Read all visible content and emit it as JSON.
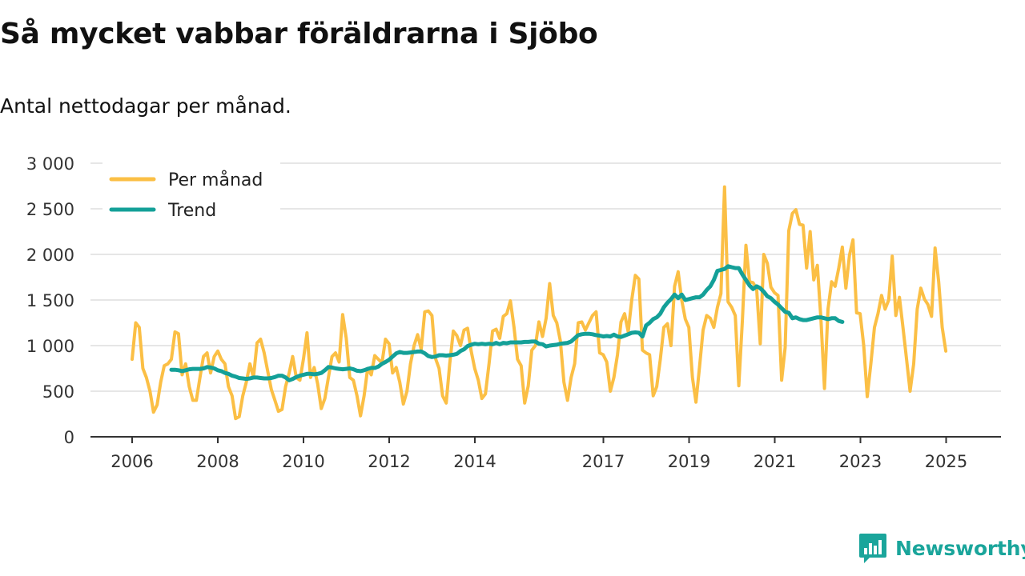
{
  "title": "Så mycket vabbar föräldrarna i Sjöbo",
  "subtitle": "Antal nettodagar per månad.",
  "brand": "Newsworthy",
  "colors": {
    "per_month": "#fbbf45",
    "trend": "#14a098",
    "grid": "#dddddd",
    "axis": "#333333"
  },
  "chart_data": {
    "type": "line",
    "ylim": [
      0,
      3000
    ],
    "y_ticks": [
      0,
      500,
      1000,
      1500,
      2000,
      2500,
      3000
    ],
    "y_tick_labels": [
      "0",
      "500",
      "1 000",
      "1 500",
      "2 000",
      "2 500",
      "3 000"
    ],
    "x_range": [
      2006.0,
      2025.5
    ],
    "x_ticks": [
      2006,
      2008,
      2010,
      2012,
      2014,
      2017,
      2019,
      2021,
      2023,
      2025
    ],
    "x_tick_labels": [
      "2006",
      "2008",
      "2010",
      "2012",
      "2014",
      "2017",
      "2019",
      "2021",
      "2023",
      "2025"
    ],
    "legend": [
      {
        "label": "Per månad",
        "color": "#fbbf45"
      },
      {
        "label": "Trend",
        "color": "#14a098"
      }
    ],
    "series": [
      {
        "name": "Per månad",
        "color": "#fbbf45",
        "x_start": 2006.0,
        "step": 0.0833,
        "values": [
          850,
          1250,
          1200,
          750,
          650,
          500,
          270,
          350,
          600,
          780,
          800,
          850,
          1150,
          1130,
          680,
          800,
          550,
          400,
          400,
          650,
          880,
          920,
          700,
          880,
          940,
          850,
          800,
          550,
          450,
          200,
          220,
          450,
          600,
          800,
          650,
          1030,
          1070,
          920,
          720,
          520,
          400,
          280,
          300,
          550,
          700,
          880,
          650,
          620,
          850,
          1140,
          650,
          760,
          580,
          310,
          420,
          650,
          880,
          920,
          820,
          1340,
          1080,
          650,
          620,
          450,
          230,
          450,
          750,
          680,
          890,
          850,
          810,
          1070,
          1020,
          700,
          760,
          600,
          360,
          500,
          800,
          1000,
          1120,
          960,
          1370,
          1380,
          1330,
          860,
          750,
          450,
          370,
          800,
          1160,
          1110,
          1000,
          1170,
          1190,
          940,
          750,
          620,
          420,
          470,
          800,
          1160,
          1180,
          1080,
          1320,
          1350,
          1490,
          1200,
          850,
          780,
          370,
          560,
          950,
          1000,
          1260,
          1100,
          1300,
          1680,
          1330,
          1250,
          1050,
          600,
          400,
          650,
          800,
          1250,
          1260,
          1170,
          1250,
          1330,
          1370,
          920,
          900,
          820,
          500,
          650,
          900,
          1260,
          1350,
          1150,
          1500,
          1770,
          1730,
          950,
          920,
          900,
          450,
          550,
          850,
          1200,
          1240,
          1000,
          1650,
          1810,
          1500,
          1290,
          1200,
          650,
          380,
          770,
          1170,
          1330,
          1300,
          1200,
          1420,
          1570,
          2740,
          1480,
          1420,
          1330,
          560,
          1280,
          2100,
          1700,
          1690,
          1620,
          1020,
          2000,
          1900,
          1640,
          1580,
          1550,
          620,
          980,
          2260,
          2450,
          2490,
          2330,
          2320,
          1850,
          2250,
          1720,
          1880,
          1300,
          530,
          1400,
          1700,
          1650,
          1850,
          2080,
          1630,
          1990,
          2160,
          1360,
          1350,
          1000,
          440,
          800,
          1200,
          1350,
          1550,
          1400,
          1500,
          1980,
          1330,
          1530,
          1200,
          850,
          500,
          800,
          1400,
          1630,
          1510,
          1450,
          1320,
          2070,
          1700,
          1200,
          940
        ]
      },
      {
        "name": "Trend",
        "color": "#14a098",
        "x_start": 2006.9167,
        "step": 0.0833,
        "values": [
          735,
          735,
          730,
          720,
          730,
          740,
          745,
          745,
          745,
          750,
          765,
          760,
          750,
          730,
          720,
          700,
          690,
          670,
          660,
          645,
          640,
          635,
          640,
          650,
          650,
          645,
          640,
          640,
          645,
          655,
          670,
          670,
          650,
          620,
          635,
          655,
          670,
          680,
          690,
          690,
          685,
          690,
          700,
          730,
          765,
          760,
          750,
          745,
          740,
          745,
          750,
          740,
          725,
          720,
          730,
          745,
          755,
          755,
          770,
          800,
          820,
          845,
          880,
          915,
          930,
          920,
          920,
          925,
          930,
          935,
          935,
          915,
          885,
          875,
          880,
          895,
          895,
          890,
          895,
          900,
          910,
          940,
          960,
          995,
          1010,
          1020,
          1015,
          1020,
          1015,
          1020,
          1015,
          1030,
          1015,
          1030,
          1025,
          1035,
          1035,
          1035,
          1035,
          1040,
          1040,
          1045,
          1045,
          1020,
          1015,
          990,
          1000,
          1005,
          1010,
          1020,
          1025,
          1030,
          1045,
          1080,
          1115,
          1125,
          1130,
          1130,
          1125,
          1115,
          1110,
          1100,
          1105,
          1100,
          1120,
          1100,
          1095,
          1110,
          1125,
          1140,
          1145,
          1140,
          1100,
          1220,
          1250,
          1290,
          1310,
          1350,
          1420,
          1470,
          1510,
          1560,
          1520,
          1560,
          1500,
          1510,
          1520,
          1530,
          1530,
          1560,
          1610,
          1650,
          1720,
          1820,
          1830,
          1840,
          1870,
          1860,
          1850,
          1850,
          1780,
          1720,
          1660,
          1620,
          1650,
          1630,
          1590,
          1540,
          1520,
          1480,
          1450,
          1410,
          1370,
          1360,
          1300,
          1310,
          1290,
          1280,
          1280,
          1290,
          1300,
          1310,
          1310,
          1300,
          1290,
          1300,
          1300,
          1270,
          1260
        ]
      }
    ]
  }
}
